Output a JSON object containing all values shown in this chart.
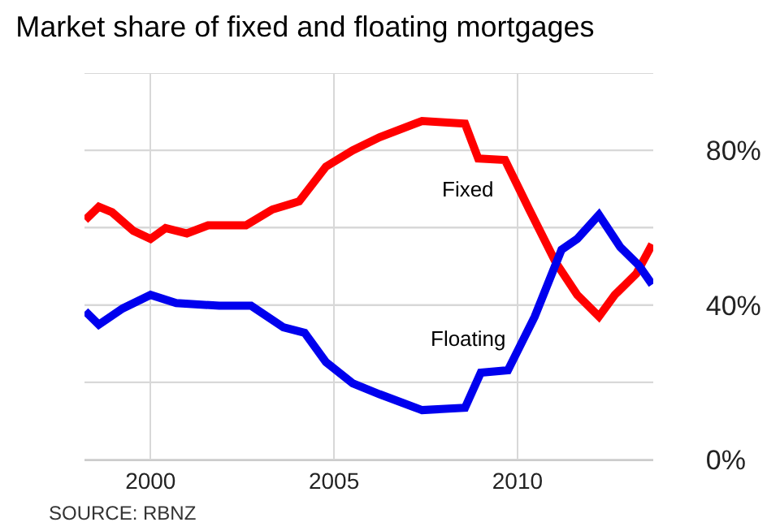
{
  "chart_data": {
    "type": "line",
    "title": "Market share of fixed and floating mortgages",
    "x": [
      1998.22,
      1998.59,
      1998.95,
      1999.53,
      2000,
      2000.41,
      2000.99,
      2001.57,
      2002.6,
      2003.32,
      2004.05,
      2004.78,
      2005.51,
      2006.24,
      2007.4,
      2008.57,
      2008.93,
      2009.66,
      2010.32,
      2011.05,
      2011.63,
      2012.22,
      2012.65,
      2013.24,
      2013.67
    ],
    "series": [
      {
        "name": "Fixed",
        "color": "#ff0000",
        "values": [
          62.0,
          65.4,
          64.0,
          59.2,
          57.1,
          59.9,
          58.5,
          60.6,
          60.6,
          64.7,
          66.8,
          75.8,
          80.0,
          83.4,
          87.6,
          86.9,
          77.9,
          77.5,
          64.7,
          50.9,
          42.6,
          37.0,
          42.6,
          48.1,
          55.7
        ]
      },
      {
        "name": "Floating",
        "color": "#0000ee",
        "x": [
          1998.22,
          1998.59,
          1999.24,
          2000,
          2000.7,
          2001.87,
          2002.74,
          2003.62,
          2004.2,
          2004.78,
          2005.51,
          2006.24,
          2007.4,
          2008.57,
          2009.0,
          2009.74,
          2010.47,
          2011.2,
          2011.63,
          2012.22,
          2012.8,
          2013.31,
          2013.67
        ],
        "values": [
          38.4,
          34.9,
          39.1,
          42.6,
          40.5,
          39.8,
          39.8,
          34.2,
          32.8,
          25.2,
          19.7,
          16.9,
          12.8,
          13.4,
          22.5,
          23.1,
          37.0,
          54.3,
          57.1,
          63.3,
          55.0,
          50.2,
          45.3
        ]
      }
    ],
    "xlim": [
      1998.2,
      2013.7
    ],
    "xticks": [
      2000,
      2005,
      2010
    ],
    "ylim": [
      0,
      100
    ],
    "yticks": [
      {
        "value": 0,
        "label": "0%"
      },
      {
        "value": 20,
        "label": null
      },
      {
        "value": 40,
        "label": "40%"
      },
      {
        "value": 60,
        "label": null
      },
      {
        "value": 80,
        "label": "80%"
      },
      {
        "value": 100,
        "label": null
      }
    ],
    "grid": true,
    "legend": false,
    "marker": "none",
    "line_style": "solid",
    "annotations": [
      "SOURCE: RBNZ"
    ]
  }
}
